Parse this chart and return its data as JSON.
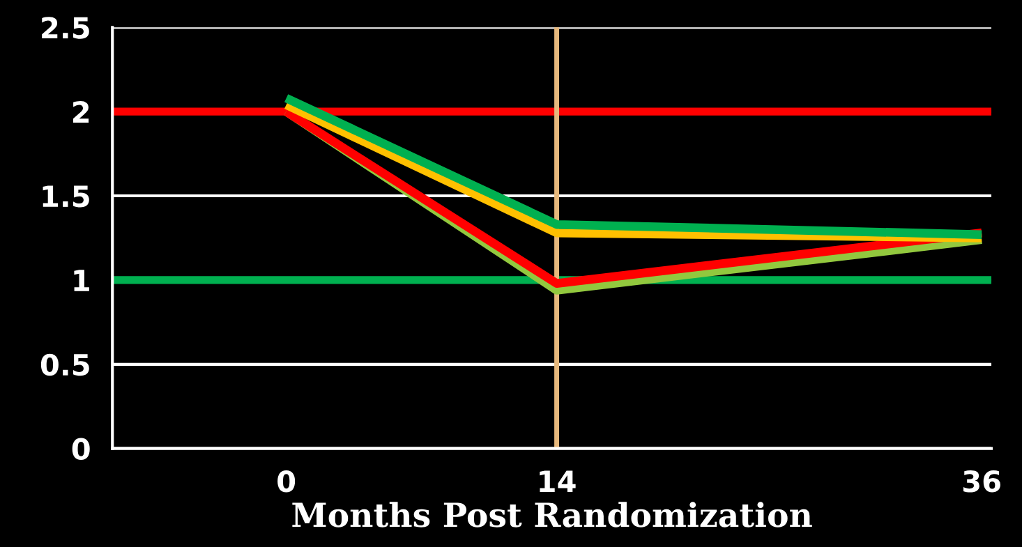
{
  "chart_data": {
    "type": "line",
    "xlabel": "Months Post Randomization",
    "x": [
      0,
      14,
      36
    ],
    "series": [
      {
        "color": "#00b050",
        "values": [
          2.08,
          1.33,
          1.27
        ]
      },
      {
        "color": "#ffc000",
        "values": [
          2.04,
          1.28,
          1.25
        ]
      },
      {
        "color": "#ff0000",
        "values": [
          2.0,
          0.98,
          1.28
        ]
      },
      {
        "color": "#92c83e",
        "values": [
          2.0,
          0.94,
          1.24
        ]
      }
    ],
    "ref_lines": [
      {
        "axis": "y",
        "value": 2,
        "color": "#ff0000"
      },
      {
        "axis": "y",
        "value": 1,
        "color": "#00b050"
      },
      {
        "axis": "x",
        "value": 14,
        "color": "#e6b87c"
      }
    ],
    "xlim": [
      -9,
      36.5
    ],
    "xticks": [
      0,
      14,
      36
    ],
    "ylim": [
      0,
      2.5
    ],
    "yticks": [
      0,
      0.5,
      1,
      1.5,
      2,
      2.5
    ],
    "grid": "y",
    "legend": false,
    "marker": "none",
    "line_style": "solid"
  }
}
